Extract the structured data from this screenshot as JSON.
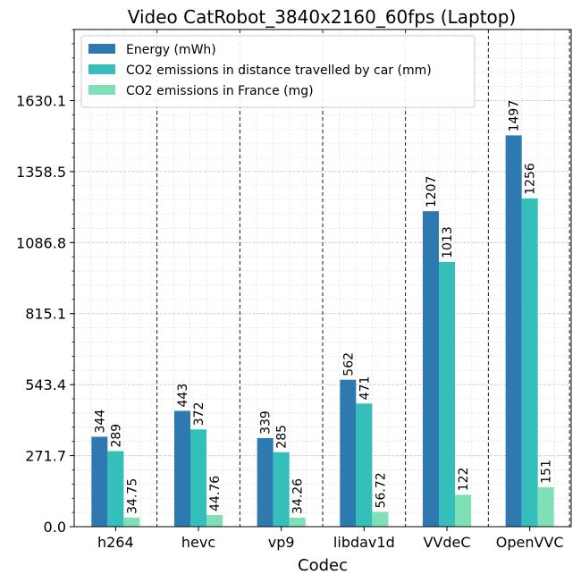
{
  "chart_data": {
    "type": "bar",
    "title": "Video CatRobot_3840x2160_60fps (Laptop)",
    "xlabel": "Codec",
    "ylabel": "",
    "categories": [
      "h264",
      "hevc",
      "vp9",
      "libdav1d",
      "VVdeC",
      "OpenVVC"
    ],
    "series": [
      {
        "name": "Energy (mWh)",
        "color": "#2e7ab0",
        "values": [
          344,
          443,
          339,
          562,
          1207,
          1497
        ],
        "labels": [
          "344",
          "443",
          "339",
          "562",
          "1207",
          "1497"
        ]
      },
      {
        "name": "CO2 emissions in distance travelled by car (mm)",
        "color": "#35bfbb",
        "values": [
          289,
          372,
          285,
          471,
          1013,
          1256
        ],
        "labels": [
          "289",
          "372",
          "285",
          "471",
          "1013",
          "1256"
        ]
      },
      {
        "name": "CO2 emissions in France (mg)",
        "color": "#7fdfb7",
        "values": [
          34.75,
          44.76,
          34.26,
          56.72,
          122,
          151
        ],
        "labels": [
          "34.75",
          "44.76",
          "34.26",
          "56.72",
          "122",
          "151"
        ]
      }
    ],
    "yticks": [
      0.0,
      271.7,
      543.4,
      815.1,
      1086.8,
      1358.5,
      1630.1
    ],
    "ytick_labels": [
      "0.0",
      "271.7",
      "543.4",
      "815.1",
      "1086.8",
      "1358.5",
      "1630.1"
    ],
    "ylim": [
      0,
      1902
    ],
    "grid": true,
    "legend_position": "top-left"
  }
}
